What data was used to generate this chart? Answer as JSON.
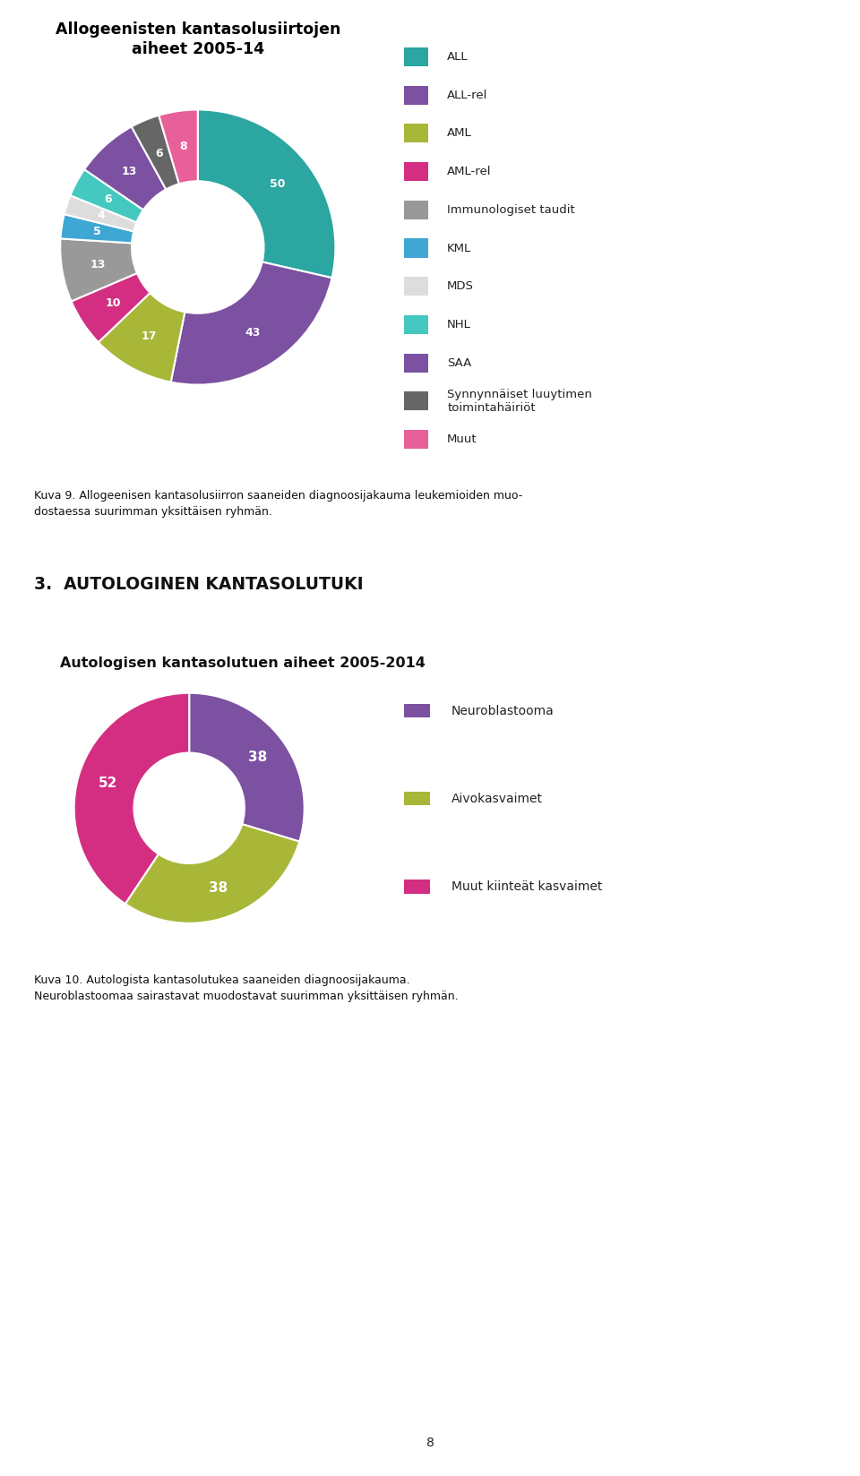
{
  "chart1": {
    "title": "Allogeenisten kantasolusiirtojen\naiheet 2005-14",
    "values": [
      50,
      43,
      17,
      10,
      13,
      5,
      4,
      6,
      13,
      6,
      8
    ],
    "colors": [
      "#2ba6a1",
      "#7c51a1",
      "#a8b737",
      "#d42e82",
      "#999999",
      "#3ea7d4",
      "#dddddd",
      "#44c8c0",
      "#7c51a1",
      "#666666",
      "#e8609a"
    ],
    "legend_labels": [
      "ALL",
      "ALL-rel",
      "AML",
      "AML-rel",
      "Immunologiset taudit",
      "KML",
      "MDS",
      "NHL",
      "SAA",
      "Synnynnäiset luuytimen\ntoimintahäiriöt",
      "Muut"
    ],
    "legend_colors": [
      "#2ba6a1",
      "#7c51a1",
      "#a8b737",
      "#d42e82",
      "#999999",
      "#3ea7d4",
      "#dddddd",
      "#44c8c0",
      "#7c51a1",
      "#666666",
      "#e8609a"
    ]
  },
  "chart2": {
    "title": "Autologisen kantasolutuen aiheet 2005-2014",
    "values": [
      38,
      38,
      52
    ],
    "colors": [
      "#7c51a1",
      "#a8b737",
      "#d42e82"
    ],
    "legend_labels": [
      "Neuroblastooma",
      "Aivokasvaimet",
      "Muut kiinteät kasvaimet"
    ],
    "legend_colors": [
      "#7c51a1",
      "#a8b737",
      "#d42e82"
    ]
  },
  "section_title": "3.  AUTOLOGINEN KANTASOLUTUKI",
  "caption1": "Kuva 9. Allogeenisen kantasolusiirron saaneiden diagnoosijakauma leukemioiden muo-\ndostaessa suurimman yksittäisen ryhmän.",
  "caption2": "Kuva 10. Autologista kantasolutukea saaneiden diagnoosijakauma.\nNeuroblastoomaa sairastavat muodostavat suurimman yksittäisen ryhmän.",
  "page_number": "8",
  "background_color": "#ffffff"
}
